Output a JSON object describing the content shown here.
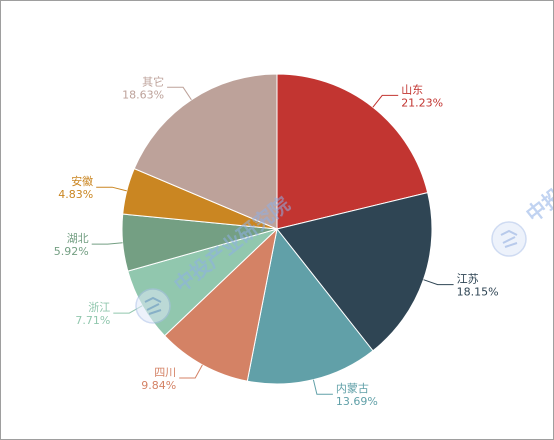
{
  "chart_data": {
    "type": "pie",
    "start_angle_deg": 90,
    "direction": "clockwise",
    "slices": [
      {
        "label": "山东",
        "percent_text": "21.23%",
        "value": 21.23,
        "color": "#c23531",
        "label_side": "right"
      },
      {
        "label": "江苏",
        "percent_text": "18.15%",
        "value": 18.15,
        "color": "#2f4554",
        "label_side": "right"
      },
      {
        "label": "内蒙古",
        "percent_text": "13.69%",
        "value": 13.69,
        "color": "#61a0a8",
        "label_side": "right"
      },
      {
        "label": "四川",
        "percent_text": "9.84%",
        "value": 9.84,
        "color": "#d48265",
        "label_side": "left"
      },
      {
        "label": "浙江",
        "percent_text": "7.71%",
        "value": 7.71,
        "color": "#91c7ae",
        "label_side": "left"
      },
      {
        "label": "湖北",
        "percent_text": "5.92%",
        "value": 5.92,
        "color": "#749f83",
        "label_side": "left"
      },
      {
        "label": "安徽",
        "percent_text": "4.83%",
        "value": 4.83,
        "color": "#ca8622",
        "label_side": "left"
      },
      {
        "label": "其它",
        "percent_text": "18.63%",
        "value": 18.63,
        "color": "#bda29a",
        "label_side": "left"
      }
    ]
  },
  "watermark": {
    "text": "中投产业研究院",
    "icon": "zt-logo-circle-icon",
    "color": "#a9bfe8"
  }
}
